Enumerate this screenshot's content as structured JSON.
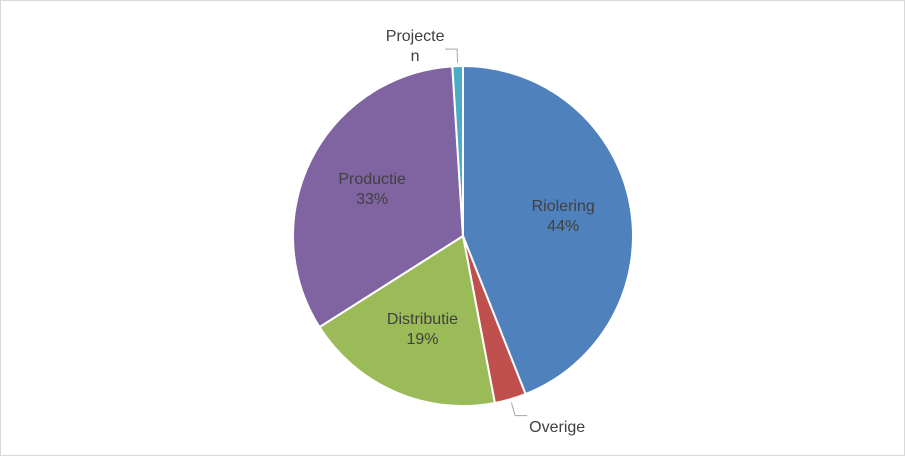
{
  "chart_data": {
    "type": "pie",
    "categories": [
      "Riolering",
      "Overige",
      "Distributie",
      "Productie",
      "Projecten"
    ],
    "values": [
      44,
      3,
      19,
      33,
      1
    ],
    "value_labels": [
      "44%",
      null,
      "19%",
      "33%",
      null
    ],
    "colors": [
      "#4f81bd",
      "#c0504d",
      "#9bbb59",
      "#8064a2",
      "#4bacc6"
    ]
  }
}
